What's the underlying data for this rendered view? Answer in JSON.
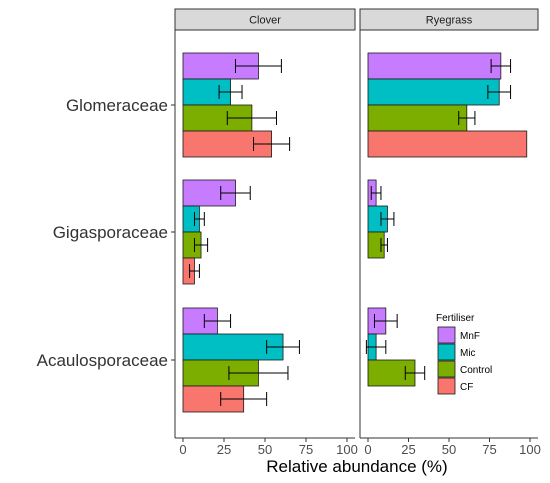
{
  "chart_data": {
    "type": "bar",
    "orientation": "horizontal",
    "facets": [
      "Clover",
      "Ryegrass"
    ],
    "categories": [
      "Glomeraceae",
      "Gigasporaceae",
      "Acaulosporaceae"
    ],
    "xlabel": "Relative abundance (%)",
    "xlim": [
      0,
      100
    ],
    "xticks": [
      0,
      25,
      50,
      75,
      100
    ],
    "grid": false,
    "legend": {
      "title": "Fertiliser",
      "placement": "inside-bottom-right"
    },
    "series": [
      {
        "name": "MnF",
        "color": "#C77CFF",
        "values": {
          "Clover": [
            46,
            32,
            21
          ],
          "Ryegrass": [
            82,
            5,
            11
          ]
        },
        "errors": {
          "Clover": [
            14,
            9,
            8
          ],
          "Ryegrass": [
            6,
            3,
            7
          ]
        }
      },
      {
        "name": "Mic",
        "color": "#00BFC4",
        "values": {
          "Clover": [
            29,
            10,
            61
          ],
          "Ryegrass": [
            81,
            12,
            5
          ]
        },
        "errors": {
          "Clover": [
            7,
            3,
            10
          ],
          "Ryegrass": [
            7,
            4,
            6
          ]
        }
      },
      {
        "name": "Control",
        "color": "#7CAE00",
        "values": {
          "Clover": [
            42,
            11,
            46
          ],
          "Ryegrass": [
            61,
            10,
            29
          ]
        },
        "errors": {
          "Clover": [
            15,
            4,
            18
          ],
          "Ryegrass": [
            5,
            2,
            6
          ]
        }
      },
      {
        "name": "CF",
        "color": "#F8766D",
        "values": {
          "Clover": [
            54,
            7,
            37
          ],
          "Ryegrass": [
            98,
            0,
            0
          ]
        },
        "errors": {
          "Clover": [
            11,
            3,
            14
          ],
          "Ryegrass": [
            0,
            0,
            0
          ]
        }
      }
    ]
  }
}
